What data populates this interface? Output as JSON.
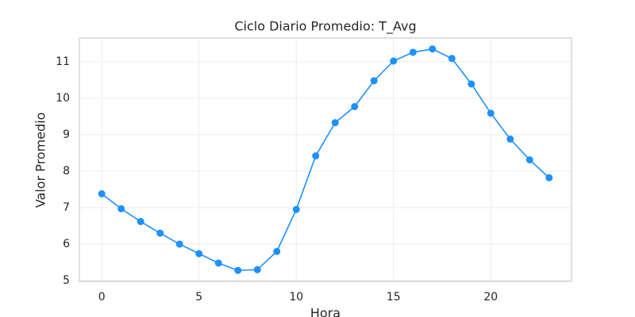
{
  "chart_data": {
    "type": "line",
    "title": "Ciclo Diario Promedio: T_Avg",
    "x_label": "Hora",
    "y_label": "Valor Promedio",
    "x": [
      0,
      1,
      2,
      3,
      4,
      5,
      6,
      7,
      8,
      9,
      10,
      11,
      12,
      13,
      14,
      15,
      16,
      17,
      18,
      19,
      20,
      21,
      22,
      23
    ],
    "series": [
      {
        "name": "T_Avg",
        "color": "#1e90ff",
        "values": [
          7.38,
          6.97,
          6.62,
          6.3,
          6.0,
          5.74,
          5.48,
          5.28,
          5.3,
          5.8,
          6.95,
          8.42,
          9.33,
          9.77,
          10.48,
          11.02,
          11.26,
          11.35,
          11.09,
          10.39,
          9.59,
          8.88,
          8.31,
          7.82
        ]
      }
    ],
    "xlim": [
      -1.15,
      24.15
    ],
    "xticks": [
      0,
      5,
      10,
      15,
      20
    ],
    "ylim": [
      4.98,
      11.65
    ],
    "yticks": [
      5,
      6,
      7,
      8,
      9,
      10,
      11
    ],
    "grid": true
  }
}
